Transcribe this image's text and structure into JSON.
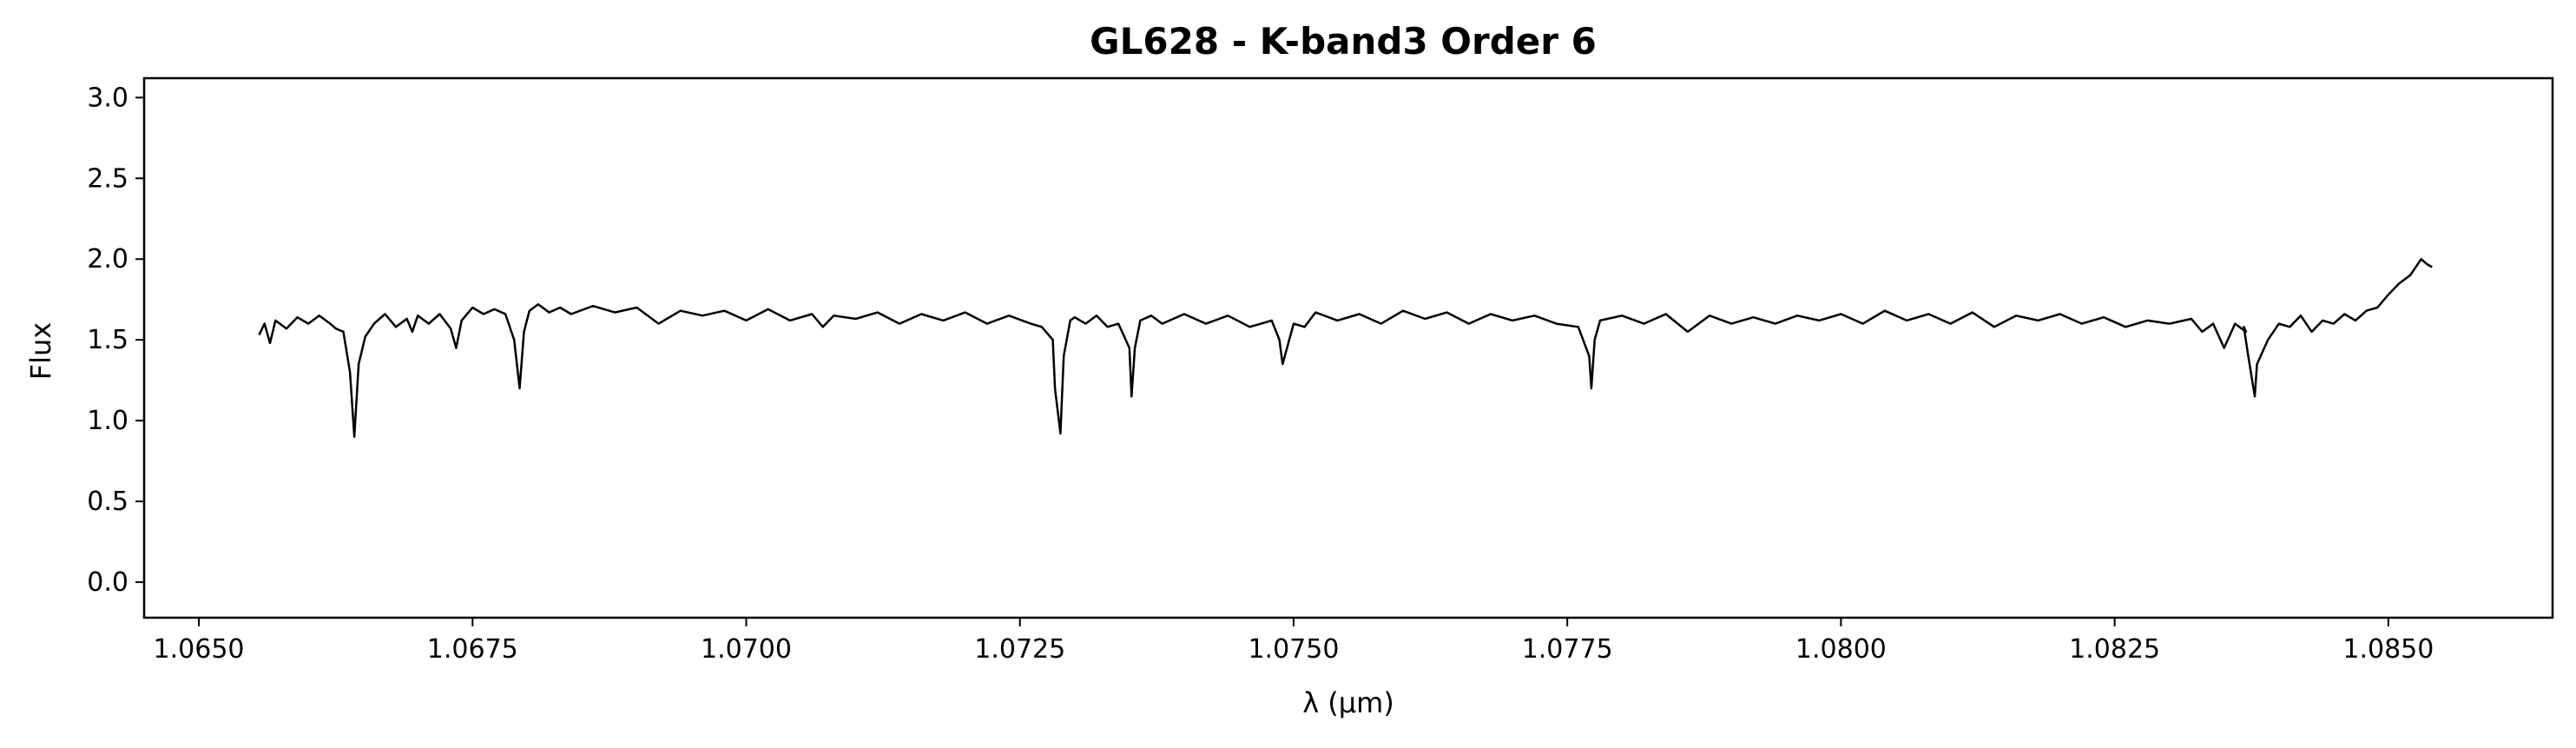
{
  "chart_data": {
    "type": "line",
    "title": "GL628 - K-band3 Order 6",
    "xlabel": "λ (μm)",
    "ylabel": "Flux",
    "xlim": [
      1.0645,
      1.0865
    ],
    "ylim": [
      -0.22,
      3.12
    ],
    "xticks": [
      1.065,
      1.0675,
      1.07,
      1.0725,
      1.075,
      1.0775,
      1.08,
      1.0825,
      1.085
    ],
    "xtick_labels": [
      "1.0650",
      "1.0675",
      "1.0700",
      "1.0725",
      "1.0750",
      "1.0775",
      "1.0800",
      "1.0825",
      "1.0850"
    ],
    "yticks": [
      0.0,
      0.5,
      1.0,
      1.5,
      2.0,
      2.5,
      3.0
    ],
    "ytick_labels": [
      "0.0",
      "0.5",
      "1.0",
      "1.5",
      "2.0",
      "2.5",
      "3.0"
    ],
    "grid": false,
    "line_color": "#000000",
    "series": [
      {
        "x": [
          1.06555,
          1.0656,
          1.06565,
          1.0657,
          1.0658,
          1.0659,
          1.066,
          1.0661,
          1.0662,
          1.06625,
          1.06632,
          1.06638,
          1.06642,
          1.06646,
          1.06652,
          1.0666,
          1.0667,
          1.0668,
          1.0669,
          1.06695,
          1.067,
          1.0671,
          1.0672,
          1.0673,
          1.06735,
          1.0674,
          1.0675,
          1.0676,
          1.0677,
          1.0678,
          1.06788,
          1.06793,
          1.06797,
          1.06802,
          1.0681,
          1.0682,
          1.0683,
          1.0684,
          1.0686,
          1.0688,
          1.069,
          1.0692,
          1.0694,
          1.0696,
          1.0698,
          1.07,
          1.0702,
          1.0704,
          1.0706,
          1.0707,
          1.0708,
          1.071,
          1.0712,
          1.0714,
          1.0716,
          1.0718,
          1.072,
          1.0722,
          1.0724,
          1.0726,
          1.0727,
          1.0728,
          1.07282,
          1.07287,
          1.0729,
          1.07296,
          1.073,
          1.0731,
          1.0732,
          1.0733,
          1.0734,
          1.0735,
          1.07352,
          1.07355,
          1.0736,
          1.0737,
          1.0738,
          1.074,
          1.0742,
          1.0744,
          1.0746,
          1.0748,
          1.07487,
          1.0749,
          1.075,
          1.0751,
          1.0752,
          1.0754,
          1.0756,
          1.0758,
          1.076,
          1.0762,
          1.0764,
          1.0766,
          1.0768,
          1.077,
          1.0772,
          1.0774,
          1.0776,
          1.0777,
          1.07772,
          1.07775,
          1.0778,
          1.078,
          1.0782,
          1.0784,
          1.0786,
          1.0788,
          1.079,
          1.0792,
          1.0794,
          1.0796,
          1.0798,
          1.08,
          1.0802,
          1.0804,
          1.0806,
          1.0808,
          1.081,
          1.0812,
          1.0814,
          1.0816,
          1.0818,
          1.082,
          1.0822,
          1.0824,
          1.0826,
          1.0828,
          1.083,
          1.0832,
          1.0833,
          1.0834,
          1.0835,
          1.0836,
          1.0837,
          1.08368,
          1.08372,
          1.08378,
          1.0838,
          1.0839,
          1.084,
          1.0841,
          1.0842,
          1.0843,
          1.0844,
          1.0845,
          1.0846,
          1.0847,
          1.0848,
          1.0849,
          1.085,
          1.0851,
          1.0852,
          1.0853,
          1.08535,
          1.0854
        ],
        "y": [
          1.53,
          1.6,
          1.48,
          1.62,
          1.57,
          1.64,
          1.6,
          1.65,
          1.6,
          1.57,
          1.55,
          1.3,
          0.9,
          1.35,
          1.52,
          1.6,
          1.66,
          1.58,
          1.63,
          1.55,
          1.65,
          1.6,
          1.66,
          1.57,
          1.45,
          1.62,
          1.7,
          1.66,
          1.69,
          1.66,
          1.5,
          1.2,
          1.55,
          1.68,
          1.72,
          1.67,
          1.7,
          1.66,
          1.71,
          1.67,
          1.7,
          1.6,
          1.68,
          1.65,
          1.68,
          1.62,
          1.69,
          1.62,
          1.66,
          1.58,
          1.65,
          1.63,
          1.67,
          1.6,
          1.66,
          1.62,
          1.67,
          1.6,
          1.65,
          1.6,
          1.58,
          1.5,
          1.2,
          0.92,
          1.4,
          1.62,
          1.64,
          1.6,
          1.65,
          1.58,
          1.6,
          1.45,
          1.15,
          1.45,
          1.62,
          1.65,
          1.6,
          1.66,
          1.6,
          1.65,
          1.58,
          1.62,
          1.5,
          1.35,
          1.6,
          1.58,
          1.67,
          1.62,
          1.66,
          1.6,
          1.68,
          1.63,
          1.67,
          1.6,
          1.66,
          1.62,
          1.65,
          1.6,
          1.58,
          1.4,
          1.2,
          1.5,
          1.62,
          1.65,
          1.6,
          1.66,
          1.55,
          1.65,
          1.6,
          1.64,
          1.6,
          1.65,
          1.62,
          1.66,
          1.6,
          1.68,
          1.62,
          1.66,
          1.6,
          1.67,
          1.58,
          1.65,
          1.62,
          1.66,
          1.6,
          1.64,
          1.58,
          1.62,
          1.6,
          1.63,
          1.55,
          1.6,
          1.45,
          1.6,
          1.55,
          1.58,
          1.4,
          1.15,
          1.35,
          1.5,
          1.6,
          1.58,
          1.65,
          1.55,
          1.62,
          1.6,
          1.66,
          1.62,
          1.68,
          1.7,
          1.78,
          1.85,
          1.9,
          2.0,
          1.97,
          1.95
        ]
      }
    ]
  }
}
